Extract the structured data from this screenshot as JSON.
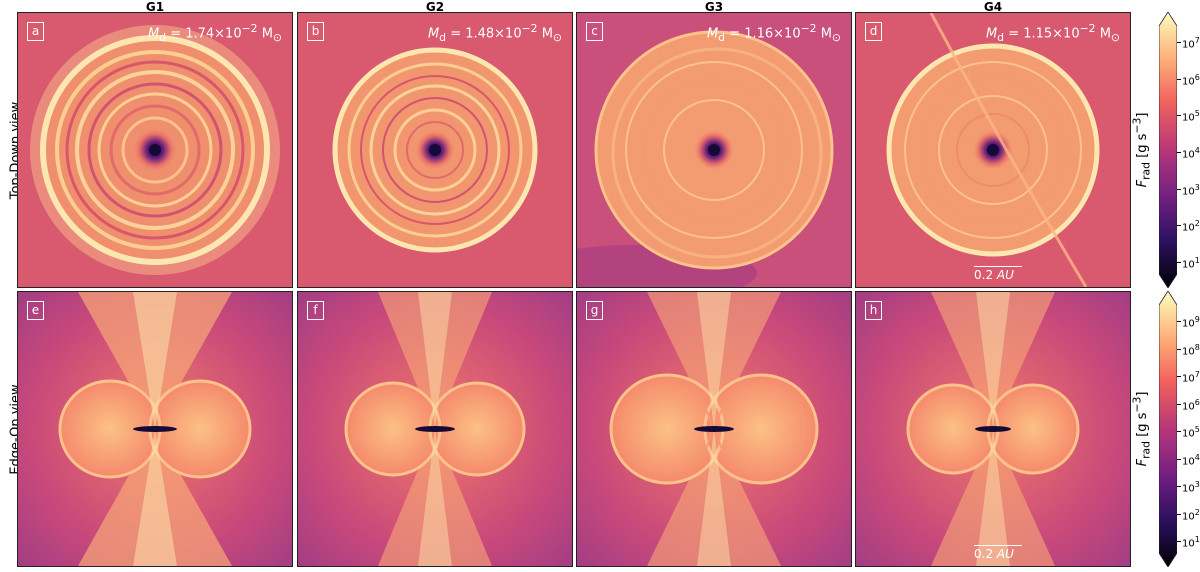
{
  "columns": [
    "G1",
    "G2",
    "G3",
    "G4"
  ],
  "rows": [
    "Top-Down view",
    "Edge-On view"
  ],
  "panel_letters": [
    "a",
    "b",
    "c",
    "d",
    "e",
    "f",
    "g",
    "h"
  ],
  "masses": [
    {
      "symbol": "M",
      "sub": "d",
      "value": "= 1.74×10",
      "exp": "−2",
      "unit": "M",
      "unit_sub": "⊙"
    },
    {
      "symbol": "M",
      "sub": "d",
      "value": "= 1.48×10",
      "exp": "−2",
      "unit": "M",
      "unit_sub": "⊙"
    },
    {
      "symbol": "M",
      "sub": "d",
      "value": "= 1.16×10",
      "exp": "−2",
      "unit": "M",
      "unit_sub": "⊙"
    },
    {
      "symbol": "M",
      "sub": "d",
      "value": "= 1.15×10",
      "exp": "−2",
      "unit": "M",
      "unit_sub": "⊙"
    }
  ],
  "scale_bar": {
    "value": "0.2",
    "unit": "AU"
  },
  "colorbars": [
    {
      "label_symbol": "F",
      "label_sub": "rad",
      "label_unit": "[g s",
      "label_exp": "−3",
      "label_close": "]",
      "ticks": [
        {
          "base": "10",
          "exp": "7"
        },
        {
          "base": "10",
          "exp": "6"
        },
        {
          "base": "10",
          "exp": "5"
        },
        {
          "base": "10",
          "exp": "4"
        },
        {
          "base": "10",
          "exp": "3"
        },
        {
          "base": "10",
          "exp": "2"
        },
        {
          "base": "10",
          "exp": "1"
        }
      ]
    },
    {
      "label_symbol": "F",
      "label_sub": "rad",
      "label_unit": "[g s",
      "label_exp": "−3",
      "label_close": "]",
      "ticks": [
        {
          "base": "10",
          "exp": "9"
        },
        {
          "base": "10",
          "exp": "8"
        },
        {
          "base": "10",
          "exp": "7"
        },
        {
          "base": "10",
          "exp": "6"
        },
        {
          "base": "10",
          "exp": "5"
        },
        {
          "base": "10",
          "exp": "4"
        },
        {
          "base": "10",
          "exp": "3"
        },
        {
          "base": "10",
          "exp": "2"
        },
        {
          "base": "10",
          "exp": "1"
        }
      ]
    }
  ],
  "colors": {
    "background": "#d4576f",
    "ring_bright": "#fde7b0",
    "disk": "#f58a6c",
    "center": "#1a0a3a",
    "outer_purple": "#a03c84",
    "cmap": [
      "#000004",
      "#2c115f",
      "#721f81",
      "#b73779",
      "#f1605d",
      "#feb078",
      "#fcfdbf"
    ]
  }
}
